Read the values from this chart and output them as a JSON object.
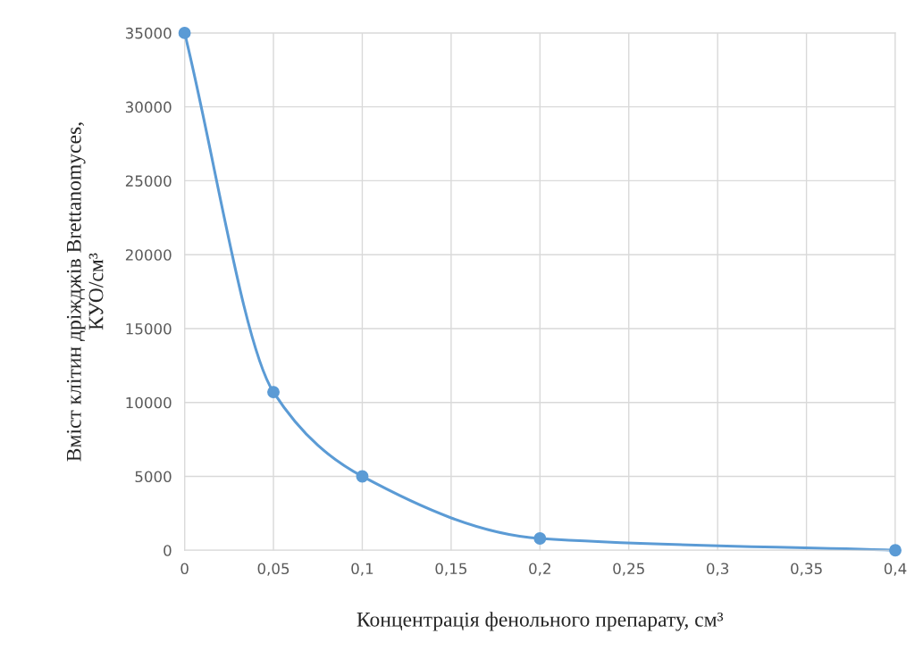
{
  "chart_data": {
    "type": "line",
    "xlabel": "Концентрація фенольного препарату, см³",
    "ylabel": "Вміст клітин дріжджів Brettanomyces,\nКУО/см³",
    "x": [
      0,
      0.05,
      0.1,
      0.2,
      0.4
    ],
    "series": [
      {
        "color": "#5b9bd5",
        "values": [
          35000,
          10700,
          5000,
          800,
          0
        ]
      }
    ],
    "xlim": [
      0,
      0.4
    ],
    "xticks": [
      0,
      {
        "value": 0.05,
        "label": "0,05"
      },
      {
        "value": 0.1,
        "label": "0,1"
      },
      {
        "value": 0.15,
        "label": "0,15"
      },
      {
        "value": 0.2,
        "label": "0,2"
      },
      {
        "value": 0.25,
        "label": "0,25"
      },
      {
        "value": 0.3,
        "label": "0,3"
      },
      {
        "value": 0.35,
        "label": "0,35"
      },
      {
        "value": 0.4,
        "label": "0,4"
      }
    ],
    "ylim": [
      0,
      35000
    ],
    "yticks": [
      0,
      5000,
      10000,
      15000,
      20000,
      25000,
      30000,
      35000
    ],
    "grid": true,
    "marker": "circle",
    "line_style": "solid",
    "legend": false
  }
}
